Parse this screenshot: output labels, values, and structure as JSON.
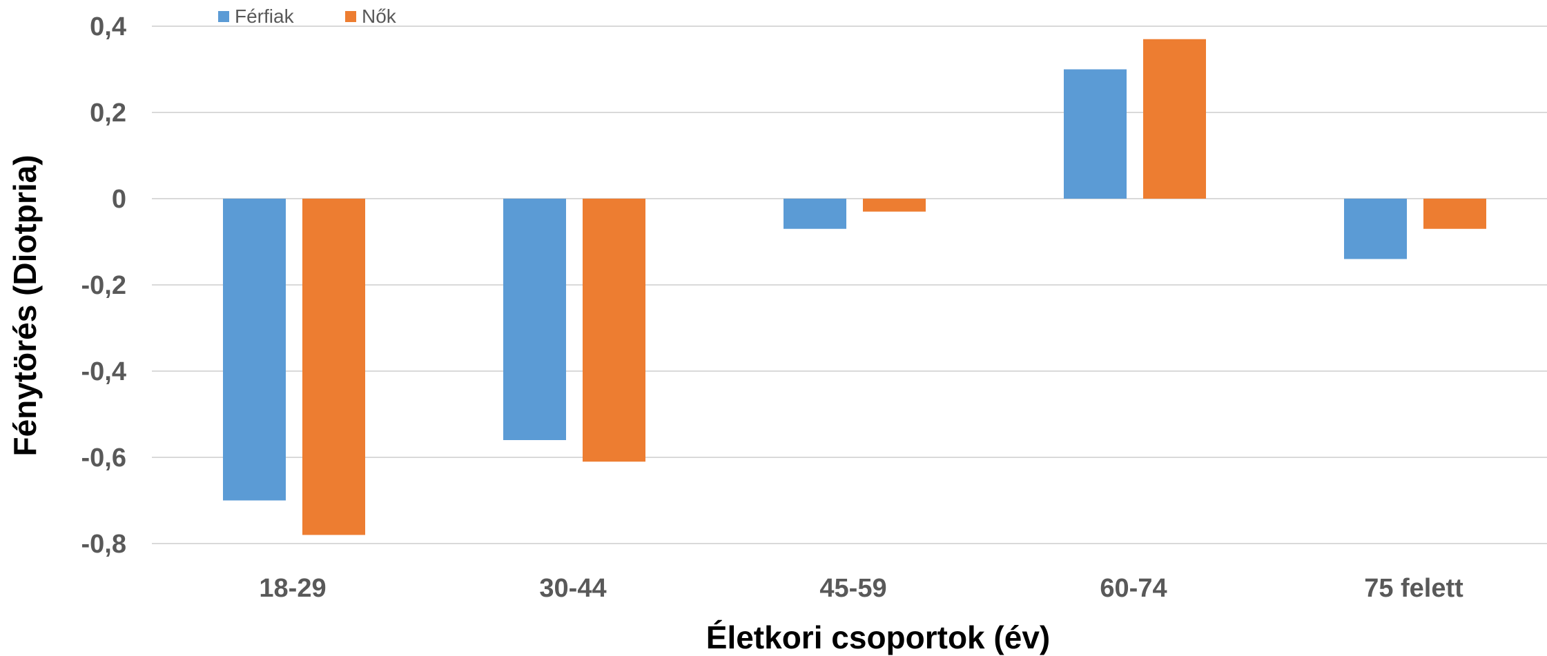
{
  "chart_data": {
    "type": "bar",
    "categories": [
      "18-29",
      "30-44",
      "45-59",
      "60-74",
      "75 felett"
    ],
    "series": [
      {
        "name": "Férfiak",
        "color": "#5b9bd5",
        "values": [
          -0.7,
          -0.56,
          -0.07,
          0.3,
          -0.14
        ]
      },
      {
        "name": "Nők",
        "color": "#ed7d31",
        "values": [
          -0.78,
          -0.61,
          -0.03,
          0.37,
          -0.07
        ]
      }
    ],
    "yticks": [
      0.4,
      0.2,
      0,
      -0.2,
      -0.4,
      -0.6,
      -0.8
    ],
    "ytick_labels": [
      "0,4",
      "0,2",
      "0",
      "-0,2",
      "-0,4",
      "-0,6",
      "-0,8"
    ],
    "ylim": [
      -0.8,
      0.4
    ],
    "xlabel": "Életkori csoportok (év)",
    "ylabel": "Fénytörés (Diotpria)",
    "legend_position": "top-left",
    "grid": true
  }
}
